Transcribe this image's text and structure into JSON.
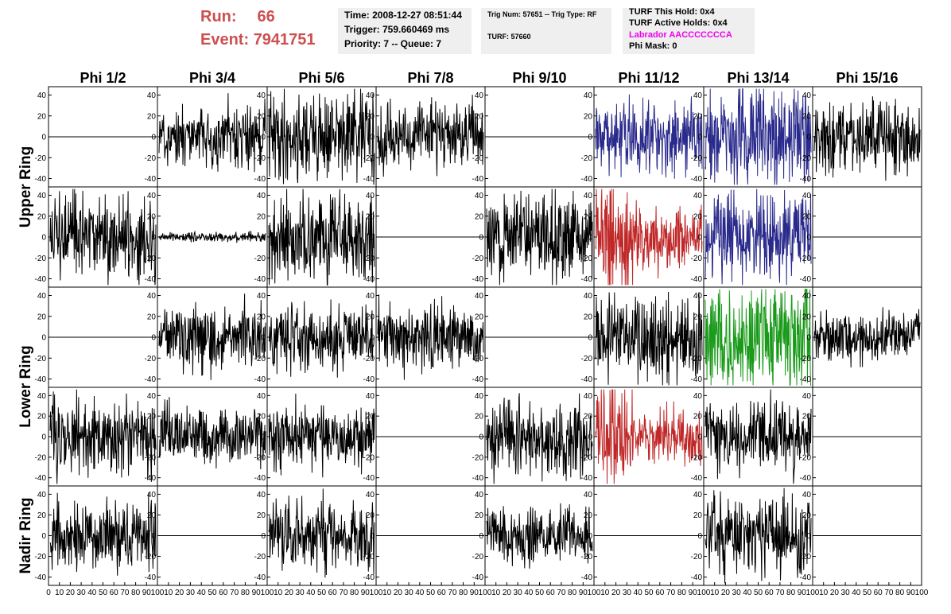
{
  "header": {
    "run_label": "Run:",
    "run_value": "66",
    "event_label": "Event:",
    "event_value": "7941751",
    "box1": {
      "time": "Time: 2008-12-27 08:51:44",
      "trigger": "Trigger: 759.660469 ms",
      "priority": "Priority: 7 -- Queue: 7"
    },
    "box2": {
      "trig": "Trig Num: 57651 -- Trig Type: RF",
      "turf": "TURF: 57660"
    },
    "box3": {
      "hold": "TURF This Hold: 0x4",
      "active": "TURF Active Holds: 0x4",
      "labrador": "Labrador AACCCCCCCA",
      "phimask": "Phi Mask: 0"
    }
  },
  "colors": {
    "run_text": "#cc5050",
    "labrador_text": "#ee00ee",
    "box_bg": "#efefef",
    "trace_black": "#000000",
    "trace_blue": "#2a2a8c",
    "trace_red": "#c02828",
    "trace_green": "#1a9a1a"
  },
  "chart_data": {
    "type": "line",
    "columns": [
      "Phi 1/2",
      "Phi 3/4",
      "Phi 5/6",
      "Phi 7/8",
      "Phi 9/10",
      "Phi 11/12",
      "Phi 13/14",
      "Phi 15/16"
    ],
    "row_labels": [
      {
        "text": "Upper Ring",
        "rows": [
          0,
          1
        ]
      },
      {
        "text": "Lower Ring",
        "rows": [
          2,
          3
        ]
      },
      {
        "text": "Nadir Ring",
        "rows": [
          4
        ]
      }
    ],
    "ylim": [
      -48,
      48
    ],
    "xlim": [
      0,
      100
    ],
    "yticks": [
      -40,
      -20,
      0,
      20,
      40
    ],
    "xticks": [
      0,
      10,
      20,
      30,
      40,
      50,
      60,
      70,
      80,
      90,
      100
    ],
    "grid": false,
    "panels": [
      [
        {
          "amp": 0,
          "color": "black"
        },
        {
          "amp": 13,
          "color": "black"
        },
        {
          "amp": 19,
          "color": "black"
        },
        {
          "amp": 14,
          "color": "black"
        },
        {
          "amp": 0,
          "color": "black"
        },
        {
          "amp": 17,
          "color": "blue"
        },
        {
          "amp": 22,
          "color": "blue"
        },
        {
          "amp": 15,
          "color": "black"
        }
      ],
      [
        {
          "amp": 19,
          "color": "black"
        },
        {
          "amp": 2,
          "color": "black"
        },
        {
          "amp": 19,
          "color": "black"
        },
        {
          "amp": 0,
          "color": "black"
        },
        {
          "amp": 19,
          "color": "black"
        },
        {
          "amp": 25,
          "color": "red"
        },
        {
          "amp": 19,
          "color": "blue"
        },
        {
          "amp": 0,
          "color": "black"
        }
      ],
      [
        {
          "amp": 0,
          "color": "black"
        },
        {
          "amp": 13,
          "color": "black"
        },
        {
          "amp": 14,
          "color": "black"
        },
        {
          "amp": 14,
          "color": "black"
        },
        {
          "amp": 0,
          "color": "black"
        },
        {
          "amp": 18,
          "color": "black"
        },
        {
          "amp": 25,
          "color": "green"
        },
        {
          "amp": 11,
          "color": "black"
        }
      ],
      [
        {
          "amp": 17,
          "color": "black"
        },
        {
          "amp": 13,
          "color": "black"
        },
        {
          "amp": 15,
          "color": "black"
        },
        {
          "amp": 0,
          "color": "black"
        },
        {
          "amp": 16,
          "color": "black"
        },
        {
          "amp": 24,
          "color": "red"
        },
        {
          "amp": 16,
          "color": "black"
        },
        {
          "amp": 0,
          "color": "black"
        }
      ],
      [
        {
          "amp": 14,
          "color": "black"
        },
        {
          "amp": 0,
          "color": "black"
        },
        {
          "amp": 15,
          "color": "black"
        },
        {
          "amp": 0,
          "color": "black"
        },
        {
          "amp": 12,
          "color": "black"
        },
        {
          "amp": 0,
          "color": "black"
        },
        {
          "amp": 17,
          "color": "black"
        },
        {
          "amp": 0,
          "color": "black"
        }
      ]
    ]
  }
}
